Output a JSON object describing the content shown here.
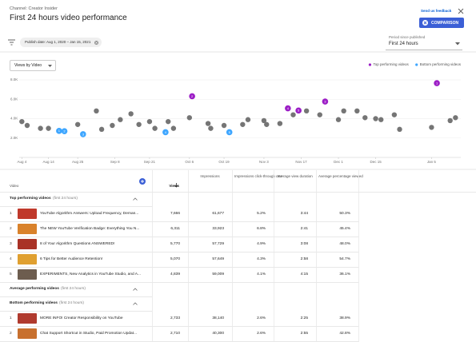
{
  "header": {
    "channel": "Channel: Creator Insider",
    "title": "First 24 hours video performance",
    "feedback": "Send us feedback",
    "comparison": "COMPARISON"
  },
  "filters": {
    "publish_date": "Publish date: Aug 1, 2020 – Jan 15, 2021",
    "period_label": "Period since published",
    "period_value": "First 24 hours"
  },
  "controls": {
    "metric": "Views by Video"
  },
  "chart_data": {
    "type": "scatter",
    "legend": "top-right",
    "grid": true,
    "ylim": [
      0,
      8000
    ],
    "yticks": [
      {
        "value": 2000,
        "label": "2.0K"
      },
      {
        "value": 4000,
        "label": "4.0K"
      },
      {
        "value": 6000,
        "label": "6.0K"
      },
      {
        "value": 8000,
        "label": "8.0K"
      }
    ],
    "xlim": [
      "Aug 3",
      "Jan 16"
    ],
    "xticks": [
      "Aug 4",
      "Aug 14",
      "Aug 25",
      "Sep 8",
      "Sep 21",
      "Oct 6",
      "Oct 19",
      "Nov 3",
      "Nov 17",
      "Dec 1",
      "Dec 15",
      "Jan 5"
    ],
    "series": [
      {
        "name": "Top performing videos",
        "color": "#9c1ec6",
        "x": [
          "Oct 7",
          "Nov 12",
          "Nov 16",
          "Nov 26",
          "Jan 7"
        ],
        "values": [
          6311,
          5070,
          4839,
          5770,
          7666
        ],
        "point_labels": [
          "2",
          "4",
          "5",
          "3",
          "1"
        ]
      },
      {
        "name": "Bottom performing videos",
        "color": "#3ea6ff",
        "x": [
          "Aug 18",
          "Aug 20",
          "Aug 27",
          "Sep 27",
          "Oct 21"
        ],
        "values": [
          2733,
          2710,
          2400,
          2600,
          2600
        ],
        "point_labels": [
          "1",
          "2",
          "3",
          "4",
          "5"
        ]
      },
      {
        "color": "#757575",
        "x": [
          "Aug 4",
          "Aug 6",
          "Aug 11",
          "Aug 14",
          "Aug 25",
          "Sep 1",
          "Sep 3",
          "Sep 7",
          "Sep 10",
          "Sep 14",
          "Sep 17",
          "Sep 21",
          "Sep 23",
          "Sep 28",
          "Sep 30",
          "Oct 6",
          "Oct 13",
          "Oct 14",
          "Oct 19",
          "Oct 26",
          "Oct 28",
          "Nov 3",
          "Nov 4",
          "Nov 9",
          "Nov 14",
          "Nov 19",
          "Nov 24",
          "Dec 1",
          "Dec 3",
          "Dec 8",
          "Dec 11",
          "Dec 15",
          "Dec 17",
          "Dec 22",
          "Dec 24",
          "Jan 5",
          "Jan 12",
          "Jan 14"
        ],
        "values": [
          3700,
          3300,
          3000,
          3000,
          3400,
          4800,
          2900,
          3300,
          3900,
          4500,
          3400,
          3700,
          3000,
          3700,
          3000,
          4100,
          3500,
          3000,
          3300,
          3400,
          3900,
          3800,
          3400,
          3500,
          4400,
          4800,
          4400,
          3900,
          4800,
          4800,
          4100,
          4000,
          3900,
          4400,
          2900,
          3100,
          3800,
          4100
        ]
      }
    ]
  },
  "table": {
    "columns": [
      "Video",
      "Views",
      "Impressions",
      "Impressions click-through rate",
      "Average view duration",
      "Average percentage viewed"
    ],
    "sections": [
      {
        "title": "Top performing videos",
        "note": "(first 24 hours)",
        "rows": [
          [
            "1",
            "YouTube Algorithm Answers: Upload Frequency, Deman...",
            "7,666",
            "61,677",
            "5.2%",
            "3:44",
            "50.3%"
          ],
          [
            "2",
            "The NEW YouTube Verification Badge: Everything You N...",
            "6,311",
            "33,923",
            "6.8%",
            "2:41",
            "45.4%"
          ],
          [
            "3",
            "8 of Your Algorithm Questions ANSWERED!",
            "5,770",
            "57,729",
            "4.9%",
            "3:08",
            "48.0%"
          ],
          [
            "4",
            "6 Tips for Better Audience Retention!",
            "5,070",
            "57,649",
            "4.3%",
            "2:58",
            "54.7%"
          ],
          [
            "5",
            "EXPERIMENTS, New Analytics in YouTube Studio, and A...",
            "4,839",
            "59,009",
            "4.1%",
            "4:15",
            "36.1%"
          ]
        ]
      },
      {
        "title": "Average performing videos",
        "note": "(first 24 hours)",
        "rows": []
      },
      {
        "title": "Bottom performing videos",
        "note": "(first 24 hours)",
        "rows": [
          [
            "1",
            "MORE INFO! Creator Responsibility on YouTube",
            "2,733",
            "38,140",
            "2.6%",
            "2:25",
            "38.9%"
          ],
          [
            "2",
            "Chat Support Shortcut in Studio, Paid Promotion Updat...",
            "2,710",
            "40,300",
            "2.6%",
            "2:55",
            "42.8%"
          ]
        ]
      }
    ]
  }
}
